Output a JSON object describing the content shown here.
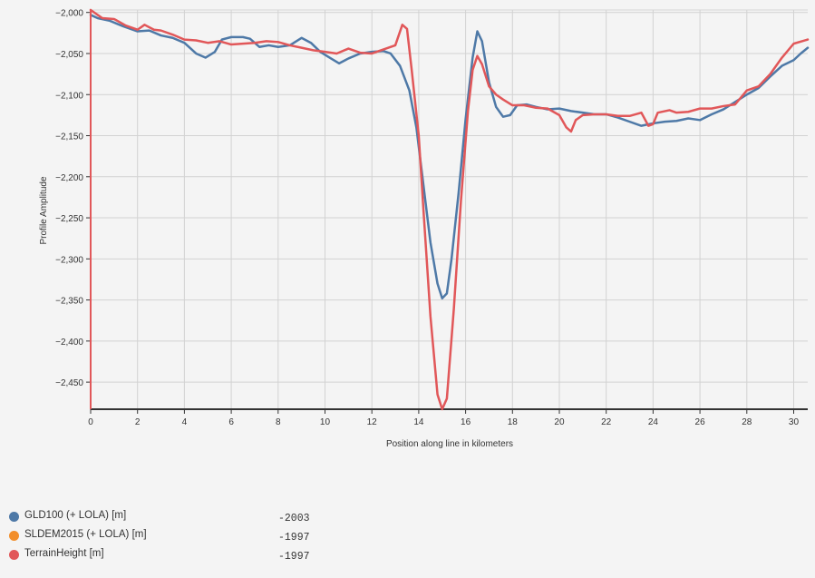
{
  "chart_data": {
    "type": "line",
    "xlabel": "Position along line in kilometers",
    "ylabel": "Profile Amplitude",
    "xlim": [
      0,
      30.6
    ],
    "ylim": [
      -2483,
      -1997
    ],
    "x_ticks": [
      0,
      2,
      4,
      6,
      8,
      10,
      12,
      14,
      16,
      18,
      20,
      22,
      24,
      26,
      28,
      30
    ],
    "y_ticks": [
      -2000,
      -2050,
      -2100,
      -2150,
      -2200,
      -2250,
      -2300,
      -2350,
      -2400,
      -2450
    ],
    "x_tick_labels": [
      "0",
      "2",
      "4",
      "6",
      "8",
      "10",
      "12",
      "14",
      "16",
      "18",
      "20",
      "22",
      "24",
      "26",
      "28",
      "30"
    ],
    "y_tick_labels": [
      "−2,000",
      "−2,050",
      "−2,100",
      "−2,150",
      "−2,200",
      "−2,250",
      "−2,300",
      "−2,350",
      "−2,400",
      "−2,450"
    ],
    "grid": true,
    "legend_position": "bottom-left",
    "series": [
      {
        "name": "GLD100 (+ LOLA) [m]",
        "color": "#4e79a7",
        "points": [
          [
            0,
            -2003
          ],
          [
            0.3,
            -2007
          ],
          [
            0.8,
            -2010
          ],
          [
            1.4,
            -2017
          ],
          [
            2,
            -2023
          ],
          [
            2.5,
            -2022
          ],
          [
            3,
            -2028
          ],
          [
            3.5,
            -2031
          ],
          [
            4,
            -2037
          ],
          [
            4.5,
            -2050
          ],
          [
            4.9,
            -2055
          ],
          [
            5.3,
            -2048
          ],
          [
            5.6,
            -2033
          ],
          [
            6,
            -2030
          ],
          [
            6.5,
            -2030
          ],
          [
            6.8,
            -2032
          ],
          [
            7.2,
            -2042
          ],
          [
            7.6,
            -2040
          ],
          [
            8,
            -2042
          ],
          [
            8.5,
            -2040
          ],
          [
            9,
            -2031
          ],
          [
            9.4,
            -2037
          ],
          [
            9.8,
            -2048
          ],
          [
            10.2,
            -2055
          ],
          [
            10.6,
            -2062
          ],
          [
            11,
            -2056
          ],
          [
            11.5,
            -2050
          ],
          [
            12,
            -2048
          ],
          [
            12.5,
            -2047
          ],
          [
            12.8,
            -2050
          ],
          [
            13.2,
            -2065
          ],
          [
            13.6,
            -2095
          ],
          [
            13.9,
            -2140
          ],
          [
            14.2,
            -2210
          ],
          [
            14.5,
            -2280
          ],
          [
            14.8,
            -2330
          ],
          [
            15,
            -2348
          ],
          [
            15.2,
            -2342
          ],
          [
            15.4,
            -2300
          ],
          [
            15.7,
            -2220
          ],
          [
            16,
            -2130
          ],
          [
            16.3,
            -2055
          ],
          [
            16.5,
            -2023
          ],
          [
            16.7,
            -2035
          ],
          [
            17,
            -2085
          ],
          [
            17.3,
            -2115
          ],
          [
            17.6,
            -2127
          ],
          [
            17.9,
            -2125
          ],
          [
            18.2,
            -2113
          ],
          [
            18.6,
            -2112
          ],
          [
            19,
            -2115
          ],
          [
            19.5,
            -2118
          ],
          [
            20,
            -2117
          ],
          [
            20.5,
            -2120
          ],
          [
            21,
            -2122
          ],
          [
            21.5,
            -2124
          ],
          [
            22,
            -2124
          ],
          [
            22.5,
            -2128
          ],
          [
            23,
            -2133
          ],
          [
            23.5,
            -2138
          ],
          [
            24,
            -2135
          ],
          [
            24.5,
            -2133
          ],
          [
            25,
            -2132
          ],
          [
            25.5,
            -2129
          ],
          [
            26,
            -2131
          ],
          [
            26.5,
            -2124
          ],
          [
            27,
            -2118
          ],
          [
            27.5,
            -2109
          ],
          [
            28,
            -2100
          ],
          [
            28.5,
            -2092
          ],
          [
            29,
            -2078
          ],
          [
            29.5,
            -2065
          ],
          [
            30,
            -2058
          ],
          [
            30.3,
            -2050
          ],
          [
            30.6,
            -2043
          ]
        ]
      },
      {
        "name": "SLDEM2015 (+ LOLA) [m]",
        "color": "#f28e2b",
        "points": []
      },
      {
        "name": "TerrainHeight [m]",
        "color": "#e15759",
        "points": [
          [
            0,
            -1997
          ],
          [
            0.2,
            -2001
          ],
          [
            0.5,
            -2007
          ],
          [
            1,
            -2008
          ],
          [
            1.5,
            -2016
          ],
          [
            2,
            -2021
          ],
          [
            2.3,
            -2015
          ],
          [
            2.7,
            -2021
          ],
          [
            3,
            -2022
          ],
          [
            3.5,
            -2027
          ],
          [
            4,
            -2033
          ],
          [
            4.5,
            -2034
          ],
          [
            5,
            -2037
          ],
          [
            5.5,
            -2035
          ],
          [
            6,
            -2039
          ],
          [
            6.5,
            -2038
          ],
          [
            7,
            -2037
          ],
          [
            7.5,
            -2035
          ],
          [
            8,
            -2036
          ],
          [
            8.5,
            -2040
          ],
          [
            9,
            -2043
          ],
          [
            9.5,
            -2046
          ],
          [
            10,
            -2048
          ],
          [
            10.5,
            -2050
          ],
          [
            11,
            -2044
          ],
          [
            11.5,
            -2049
          ],
          [
            12,
            -2050
          ],
          [
            12.5,
            -2045
          ],
          [
            13,
            -2040
          ],
          [
            13.3,
            -2015
          ],
          [
            13.5,
            -2020
          ],
          [
            13.7,
            -2070
          ],
          [
            14,
            -2150
          ],
          [
            14.2,
            -2240
          ],
          [
            14.5,
            -2370
          ],
          [
            14.8,
            -2465
          ],
          [
            15,
            -2483
          ],
          [
            15.2,
            -2470
          ],
          [
            15.5,
            -2360
          ],
          [
            15.8,
            -2230
          ],
          [
            16.1,
            -2120
          ],
          [
            16.3,
            -2070
          ],
          [
            16.5,
            -2053
          ],
          [
            16.7,
            -2063
          ],
          [
            17,
            -2090
          ],
          [
            17.3,
            -2100
          ],
          [
            17.6,
            -2106
          ],
          [
            18,
            -2113
          ],
          [
            18.5,
            -2113
          ],
          [
            19,
            -2116
          ],
          [
            19.5,
            -2117
          ],
          [
            20,
            -2125
          ],
          [
            20.3,
            -2140
          ],
          [
            20.5,
            -2145
          ],
          [
            20.7,
            -2131
          ],
          [
            21,
            -2125
          ],
          [
            21.5,
            -2124
          ],
          [
            22,
            -2124
          ],
          [
            22.5,
            -2126
          ],
          [
            23,
            -2126
          ],
          [
            23.5,
            -2122
          ],
          [
            23.8,
            -2138
          ],
          [
            24,
            -2136
          ],
          [
            24.2,
            -2122
          ],
          [
            24.7,
            -2119
          ],
          [
            25,
            -2122
          ],
          [
            25.5,
            -2121
          ],
          [
            26,
            -2117
          ],
          [
            26.5,
            -2117
          ],
          [
            27,
            -2114
          ],
          [
            27.5,
            -2112
          ],
          [
            28,
            -2095
          ],
          [
            28.5,
            -2090
          ],
          [
            29,
            -2075
          ],
          [
            29.5,
            -2055
          ],
          [
            30,
            -2038
          ],
          [
            30.6,
            -2033
          ]
        ]
      }
    ]
  },
  "legend": {
    "items": [
      {
        "label": "GLD100 (+ LOLA) [m]",
        "value": "-2003",
        "color": "#4e79a7"
      },
      {
        "label": "SLDEM2015 (+ LOLA) [m]",
        "value": "-1997",
        "color": "#f28e2b"
      },
      {
        "label": "TerrainHeight [m]",
        "value": "-1997",
        "color": "#e15759"
      }
    ]
  }
}
